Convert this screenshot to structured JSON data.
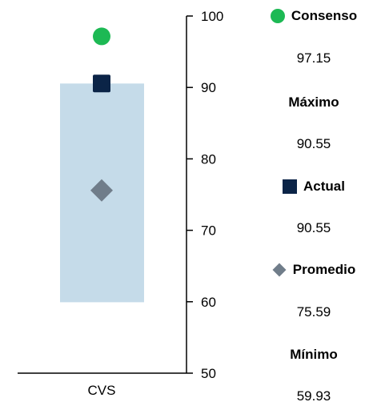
{
  "chart_data": {
    "type": "range-marker",
    "categories": [
      "CVS"
    ],
    "y_axis": {
      "ticks": [
        50,
        60,
        70,
        80,
        90,
        100
      ],
      "ylim": [
        50,
        100
      ],
      "position": "right"
    },
    "grid": false,
    "range_bar": {
      "min": 59.93,
      "max": 90.55
    },
    "series": [
      {
        "name": "Consenso",
        "values": [
          97.15
        ],
        "marker": "circle",
        "color": "#1db954"
      },
      {
        "name": "Actual",
        "values": [
          90.55
        ],
        "marker": "square",
        "color": "#0b2447"
      },
      {
        "name": "Promedio",
        "values": [
          75.59
        ],
        "marker": "diamond",
        "color": "#707d8a"
      }
    ],
    "colors": {
      "range_bar": "#c5dbe9",
      "axis": "#000000"
    }
  },
  "legend": {
    "consenso": {
      "label": "Consenso",
      "value": "97.15"
    },
    "maximo": {
      "label": "Máximo",
      "value": "90.55"
    },
    "actual": {
      "label": "Actual",
      "value": "90.55"
    },
    "promedio": {
      "label": "Promedio",
      "value": "75.59"
    },
    "minimo": {
      "label": "Mínimo",
      "value": "59.93"
    }
  }
}
